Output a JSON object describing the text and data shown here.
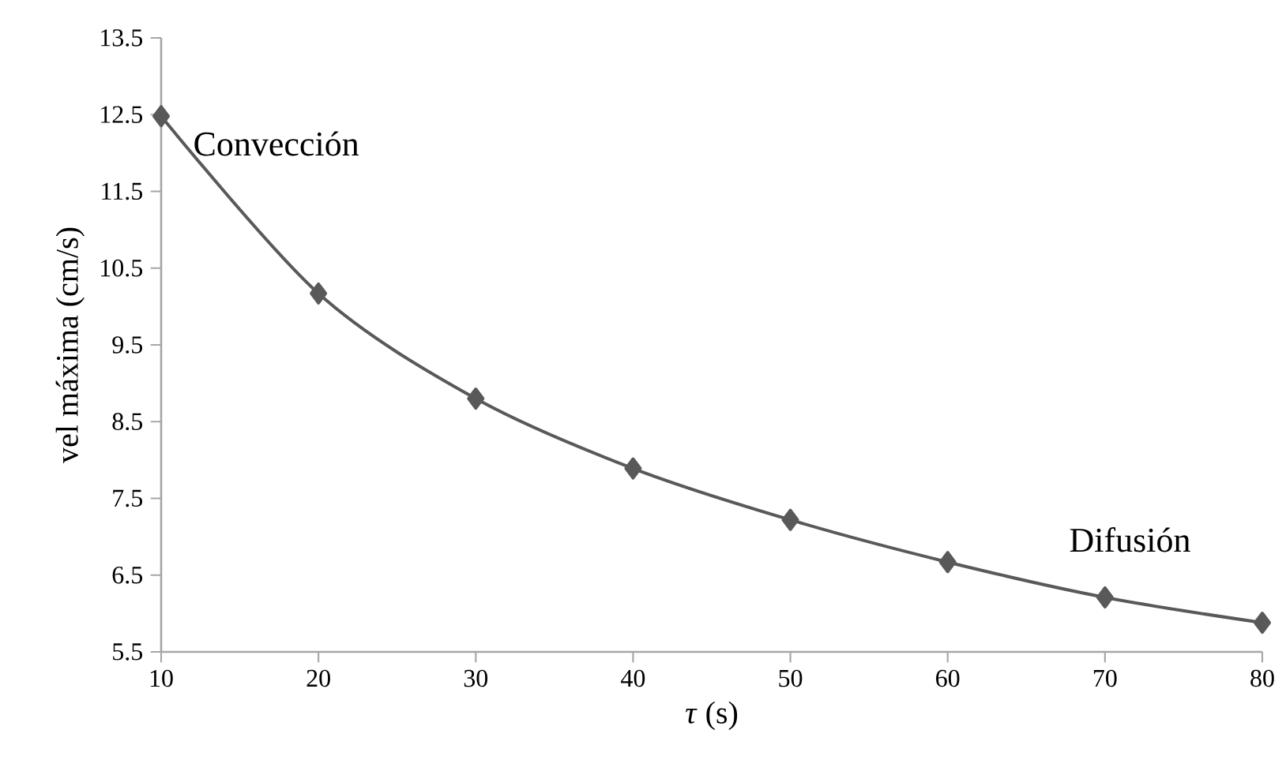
{
  "chart_data": {
    "type": "line",
    "xlabel": "*τ* (s)",
    "ylabel": "vel máxima (cm/s)",
    "x": [
      10,
      20,
      30,
      40,
      50,
      60,
      70,
      80
    ],
    "series": [
      {
        "color": "#595959",
        "values": [
          12.48,
          10.17,
          8.8,
          7.89,
          7.22,
          6.67,
          6.21,
          5.88
        ]
      }
    ],
    "xlim": [
      10,
      80
    ],
    "xticks": [
      10,
      20,
      30,
      40,
      50,
      60,
      70,
      80
    ],
    "ylim": [
      5.5,
      13.5
    ],
    "yticks": [
      5.5,
      6.5,
      7.5,
      8.5,
      9.5,
      10.5,
      11.5,
      12.5,
      13.5
    ],
    "marker": "diamond",
    "line_style": "solid",
    "grid": false,
    "annotations": [
      "Convección",
      "Difusión"
    ]
  }
}
